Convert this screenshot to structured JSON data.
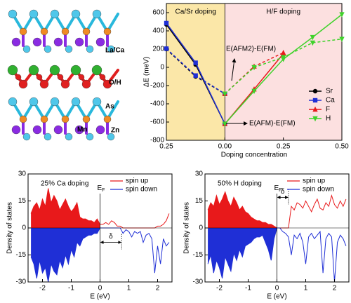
{
  "structure": {
    "labels": [
      "La/Ca",
      "O/H",
      "As",
      "Mn",
      "Zn"
    ]
  },
  "chart_data": [
    {
      "type": "line",
      "xlabel": "Doping concentration",
      "ylabel": "ΔE (meV)",
      "xlim": [
        -0.25,
        0.5
      ],
      "ylim": [
        -800,
        700
      ],
      "xticks": [
        {
          "value": -0.25,
          "label": "0.25"
        },
        {
          "value": 0,
          "label": "0.00"
        },
        {
          "value": 0.25,
          "label": "0.25"
        },
        {
          "value": 0.5,
          "label": "0.50"
        }
      ],
      "yticks": [
        -800,
        -600,
        -400,
        -200,
        0,
        200,
        400,
        600
      ],
      "regions": [
        {
          "label": "Ca/Sr doping",
          "range": [
            -0.25,
            0
          ],
          "color": "#fbe7a8"
        },
        {
          "label": "H/F doping",
          "range": [
            0,
            0.5
          ],
          "color": "#fce0e0"
        }
      ],
      "annotations": [
        "E(AFM2)-E(FM)",
        "E(AFM)-E(FM)"
      ],
      "legend": "lower right",
      "series": [
        {
          "name": "Sr",
          "color": "#000000",
          "marker": "circle",
          "x": [
            -0.25,
            -0.125,
            0
          ],
          "values": [
            470,
            30,
            -620
          ],
          "values_afm2": [
            200,
            -100,
            -290
          ]
        },
        {
          "name": "Ca",
          "color": "#1f2fd6",
          "marker": "square",
          "x": [
            -0.25,
            -0.125,
            0
          ],
          "values": [
            485,
            50,
            -620
          ],
          "values_afm2": [
            205,
            -90,
            -290
          ]
        },
        {
          "name": "F",
          "color": "#e8191b",
          "marker": "triangle-up",
          "x": [
            0,
            0.125,
            0.25
          ],
          "values": [
            -620,
            -240,
            150
          ],
          "values_afm2": [
            -290,
            10,
            160
          ]
        },
        {
          "name": "H",
          "color": "#3fd22b",
          "marker": "triangle-down",
          "x": [
            0,
            0.125,
            0.25,
            0.375,
            0.5
          ],
          "values": [
            -620,
            -260,
            90,
            330,
            580
          ],
          "values_afm2": [
            -290,
            0,
            110,
            270,
            310
          ]
        }
      ]
    },
    {
      "type": "dos",
      "title": "25% Ca doping",
      "xlabel": "E (eV)",
      "ylabel": "Density of states",
      "xlim": [
        -2.5,
        2.5
      ],
      "ylim": [
        -30,
        30
      ],
      "xticks": [
        -2,
        -1,
        0,
        1,
        2
      ],
      "yticks": [
        -30,
        -15,
        0,
        15,
        30
      ],
      "fermi_label": "E",
      "fermi_sub": "F",
      "fill_below_fermi": true,
      "gap": {
        "label": "δ",
        "x": [
          0,
          0.75
        ],
        "y": -8
      },
      "x": [
        -2.4,
        -2.3,
        -2.2,
        -2.1,
        -2.0,
        -1.9,
        -1.8,
        -1.7,
        -1.6,
        -1.5,
        -1.4,
        -1.3,
        -1.2,
        -1.1,
        -1.0,
        -0.9,
        -0.8,
        -0.7,
        -0.6,
        -0.5,
        -0.4,
        -0.3,
        -0.2,
        -0.1,
        0,
        0.1,
        0.2,
        0.3,
        0.4,
        0.5,
        0.6,
        0.7,
        0.8,
        0.9,
        1.0,
        1.1,
        1.2,
        1.3,
        1.4,
        1.5,
        1.6,
        1.7,
        1.8,
        1.9,
        2.0,
        2.1,
        2.2,
        2.3,
        2.4
      ],
      "series": [
        {
          "name": "spin up",
          "color": "#e8191b",
          "values": [
            8,
            12,
            14,
            10,
            16,
            12,
            22,
            14,
            18,
            15,
            10,
            13,
            16,
            12,
            9,
            11,
            14,
            6,
            5,
            5,
            4,
            4,
            3,
            5,
            2,
            2,
            3,
            2,
            4,
            3,
            1,
            1,
            0,
            0,
            0,
            0,
            0,
            0,
            0,
            0,
            0,
            0,
            0,
            0,
            1,
            1,
            2,
            4,
            8
          ]
        },
        {
          "name": "spin down",
          "color": "#1f2fd6",
          "values": [
            -16,
            -20,
            -28,
            -18,
            -25,
            -22,
            -30,
            -20,
            -24,
            -26,
            -18,
            -22,
            -15,
            -20,
            -12,
            -16,
            -8,
            -10,
            -6,
            -5,
            -4,
            -4,
            -3,
            -3,
            0,
            0,
            0,
            0,
            0,
            0,
            0,
            0,
            -3,
            -1,
            -2,
            -5,
            -2,
            -3,
            -2,
            -8,
            -4,
            -3,
            -6,
            -25,
            -10,
            -20,
            -6,
            -10,
            -8
          ]
        }
      ]
    },
    {
      "type": "dos",
      "title": "50% H doping",
      "xlabel": "E (eV)",
      "ylabel": "Density of states",
      "xlim": [
        -2.5,
        2.5
      ],
      "ylim": [
        -30,
        30
      ],
      "xticks": [
        -2,
        -1,
        0,
        1,
        2
      ],
      "yticks": [
        -30,
        -15,
        0,
        15,
        30
      ],
      "fermi_label": "E",
      "fermi_sub": "F",
      "fill_below_fermi": true,
      "gap": {
        "label": "δ",
        "x": [
          0,
          0.4
        ],
        "y": 17
      },
      "x": [
        -2.4,
        -2.3,
        -2.2,
        -2.1,
        -2.0,
        -1.9,
        -1.8,
        -1.7,
        -1.6,
        -1.5,
        -1.4,
        -1.3,
        -1.2,
        -1.1,
        -1.0,
        -0.9,
        -0.8,
        -0.7,
        -0.6,
        -0.5,
        -0.4,
        -0.3,
        -0.2,
        -0.1,
        0,
        0.1,
        0.2,
        0.3,
        0.4,
        0.5,
        0.6,
        0.7,
        0.8,
        0.9,
        1.0,
        1.1,
        1.2,
        1.3,
        1.4,
        1.5,
        1.6,
        1.7,
        1.8,
        1.9,
        2.0,
        2.1,
        2.2,
        2.3,
        2.4
      ],
      "series": [
        {
          "name": "spin up",
          "color": "#e8191b",
          "values": [
            10,
            14,
            12,
            18,
            13,
            16,
            20,
            15,
            12,
            17,
            14,
            10,
            12,
            9,
            8,
            6,
            5,
            4,
            4,
            3,
            3,
            2,
            2,
            1,
            0,
            0,
            0,
            0,
            0,
            12,
            10,
            14,
            13,
            11,
            15,
            12,
            9,
            13,
            16,
            11,
            10,
            14,
            12,
            18,
            13,
            11,
            15,
            12,
            16
          ]
        },
        {
          "name": "spin down",
          "color": "#1f2fd6",
          "values": [
            -20,
            -15,
            -25,
            -18,
            -22,
            -28,
            -16,
            -20,
            -24,
            -14,
            -18,
            -12,
            -16,
            -10,
            -9,
            -8,
            -6,
            -5,
            -5,
            -4,
            -8,
            -12,
            -18,
            -6,
            0,
            0,
            -2,
            -3,
            -5,
            -15,
            -4,
            -6,
            -3,
            -8,
            -20,
            -5,
            -3,
            -6,
            -4,
            -2,
            -25,
            -6,
            -3,
            -5,
            -30,
            -8,
            -4,
            -6,
            -10
          ]
        }
      ]
    }
  ]
}
